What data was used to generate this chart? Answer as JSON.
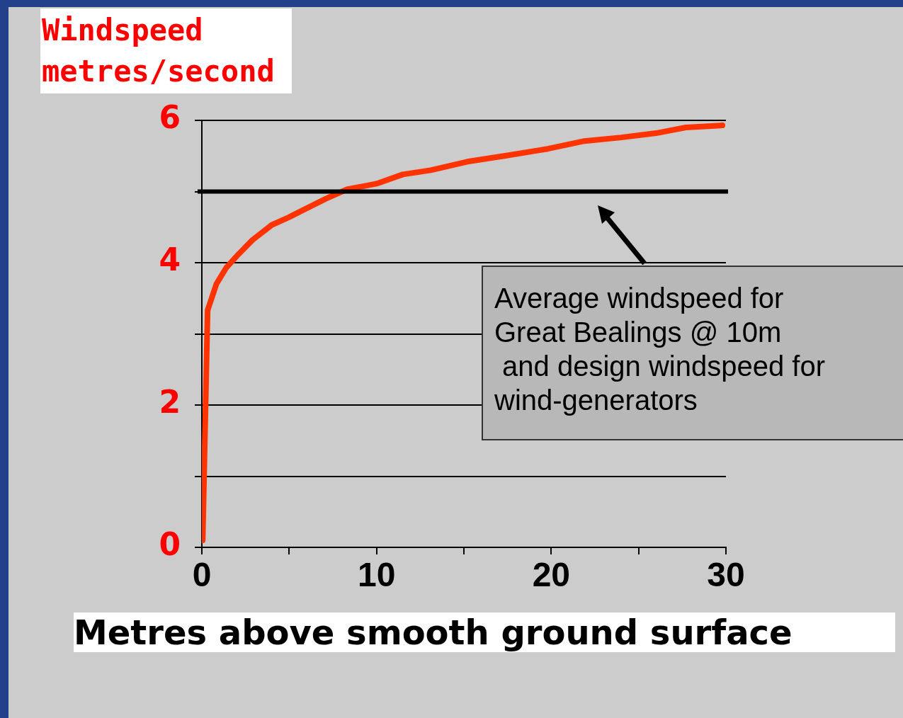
{
  "chart_data": {
    "type": "line",
    "ylabel": "Windspeed\nmetres/second",
    "xlabel": "Metres above smooth ground surface",
    "x": [
      0.05,
      0.33,
      0.83,
      1.4,
      2.1,
      2.9,
      4.0,
      5.0,
      5.8,
      7.1,
      8.3,
      10,
      11.5,
      13.1,
      15.2,
      17.3,
      19.8,
      21.9,
      24,
      26,
      27.7,
      29.8
    ],
    "series": [
      {
        "color": "#ff3300",
        "values": [
          0.1,
          3.33,
          3.7,
          3.93,
          4.12,
          4.32,
          4.53,
          4.64,
          4.74,
          4.9,
          5.03,
          5.11,
          5.24,
          5.3,
          5.42,
          5.5,
          5.6,
          5.71,
          5.76,
          5.82,
          5.9,
          5.93
        ]
      }
    ],
    "xlim": [
      0,
      30
    ],
    "ylim": [
      0,
      6
    ],
    "xticks": [
      0,
      {
        "value": 5,
        "label": null
      },
      10,
      {
        "value": 15,
        "label": null
      },
      20,
      {
        "value": 25,
        "label": null
      },
      30
    ],
    "yticks": [
      0,
      {
        "value": 1,
        "label": null
      },
      2,
      {
        "value": 3,
        "label": null
      },
      4,
      {
        "value": 5,
        "label": null
      },
      6
    ],
    "grid": "y",
    "marker": "none",
    "line_style": "solid",
    "ref_lines": [
      {
        "axis": "y",
        "value": 5,
        "color": "#000000"
      }
    ],
    "annotations": [
      "Average windspeed for\nGreat Bealings @ 10m\n and design windspeed for\nwind-generators"
    ]
  }
}
